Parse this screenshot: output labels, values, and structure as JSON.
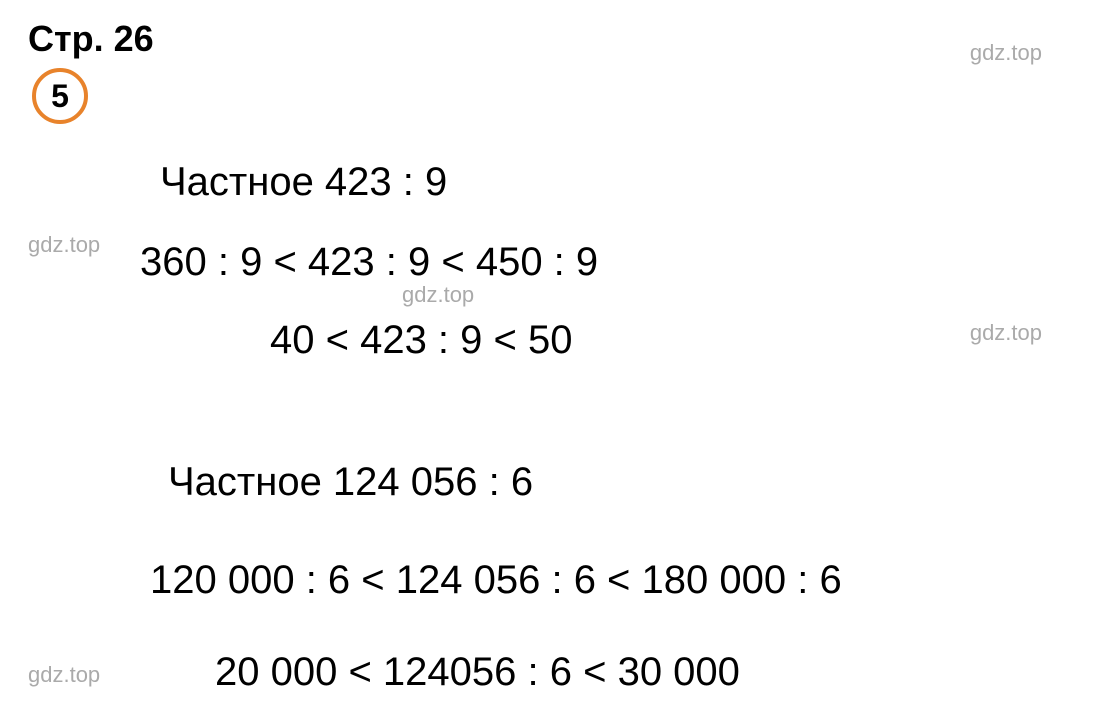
{
  "header": {
    "page_label": "Стр. 26",
    "problem_number": "5"
  },
  "watermarks": {
    "text": "gdz.top",
    "color": "#aaaaaa",
    "fontsize": 22
  },
  "content": {
    "section1": {
      "title": "Частное 423 : 9",
      "inequality1": "360 : 9 < 423 : 9 < 450 : 9",
      "inequality2": "40 < 423 : 9 < 50"
    },
    "section2": {
      "title": "Частное 124 056 : 6",
      "inequality1": "120 000 : 6 < 124 056 : 6 < 180 000 : 6",
      "inequality2": "20 000 < 124056 : 6 < 30 000"
    }
  },
  "styling": {
    "background_color": "#ffffff",
    "text_color": "#000000",
    "circle_border_color": "#e8832b",
    "header_fontsize": 36,
    "math_fontsize": 40,
    "problem_number_fontsize": 32
  }
}
